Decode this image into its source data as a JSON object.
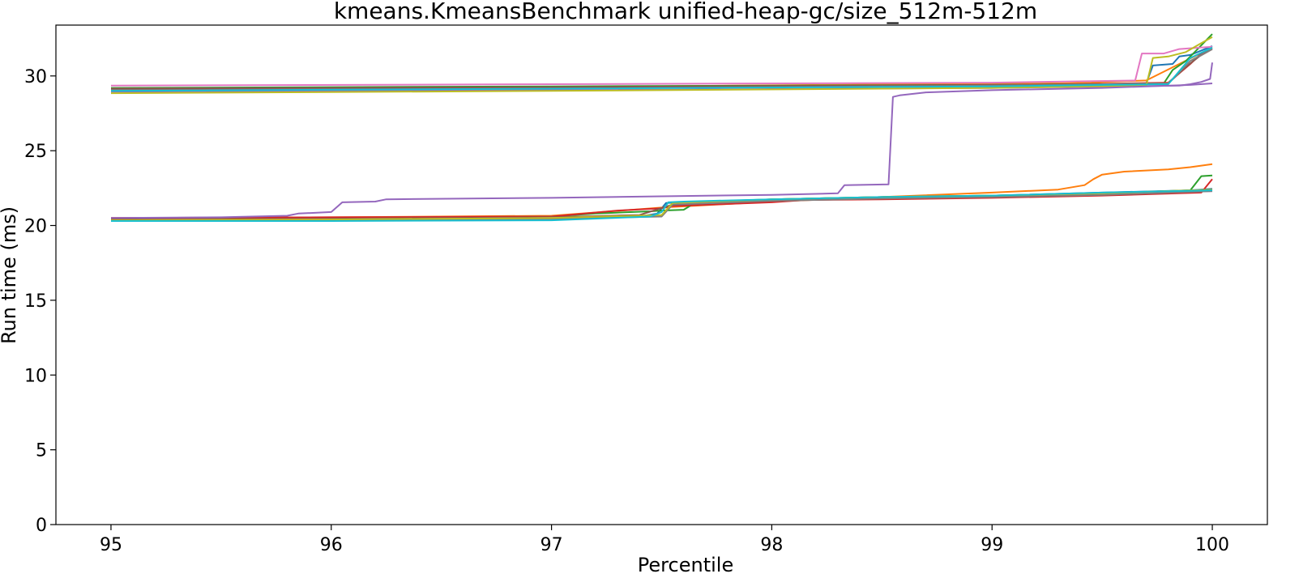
{
  "chart_data": {
    "type": "line",
    "title": "kmeans.KmeansBenchmark unified-heap-gc/size_512m-512m",
    "xlabel": "Percentile",
    "ylabel": "Run time (ms)",
    "xlim": [
      94.75,
      100.25
    ],
    "ylim": [
      0,
      33.4
    ],
    "xticks": [
      95,
      96,
      97,
      98,
      99,
      100
    ],
    "yticks": [
      0,
      5,
      10,
      15,
      20,
      25,
      30
    ],
    "grid": false,
    "legend": "none",
    "series": [
      {
        "color": "#1f77b4",
        "x": [
          95,
          97,
          99,
          99.7,
          99.73,
          99.82,
          99.85,
          99.9,
          99.95,
          100
        ],
        "y": [
          29.05,
          29.18,
          29.35,
          29.5,
          30.7,
          30.8,
          31.3,
          31.4,
          31.7,
          32.0
        ]
      },
      {
        "color": "#ff7f0e",
        "x": [
          95,
          97,
          98.6,
          99.3,
          99.45,
          99.5,
          99.6,
          99.7,
          99.85,
          100
        ],
        "y": [
          29.1,
          29.25,
          29.45,
          29.5,
          29.55,
          29.6,
          29.65,
          29.7,
          30.8,
          31.9
        ]
      },
      {
        "color": "#2ca02c",
        "x": [
          95,
          97,
          99,
          99.78,
          99.82,
          99.88,
          99.92,
          100
        ],
        "y": [
          29.2,
          29.3,
          29.4,
          29.5,
          30.4,
          31.0,
          31.6,
          32.8
        ]
      },
      {
        "color": "#d62728",
        "x": [
          95,
          97,
          99,
          99.8,
          99.9,
          99.95,
          100
        ],
        "y": [
          29.1,
          29.2,
          29.35,
          29.55,
          30.8,
          31.5,
          31.9
        ]
      },
      {
        "color": "#9467bd",
        "x": [
          95,
          97,
          99,
          99.85,
          99.9,
          99.95,
          99.99,
          100
        ],
        "y": [
          28.95,
          29.05,
          29.2,
          29.35,
          29.45,
          29.6,
          29.8,
          30.9
        ]
      },
      {
        "color": "#8c564b",
        "x": [
          95,
          97,
          99,
          99.8,
          99.88,
          99.94,
          100
        ],
        "y": [
          29.15,
          29.25,
          29.4,
          29.5,
          30.6,
          31.3,
          31.8
        ]
      },
      {
        "color": "#e377c2",
        "x": [
          95,
          97,
          99,
          99.65,
          99.68,
          99.78,
          99.85,
          99.9,
          100
        ],
        "y": [
          29.35,
          29.45,
          29.55,
          29.7,
          31.5,
          31.5,
          31.8,
          31.85,
          31.95
        ]
      },
      {
        "color": "#7f7f7f",
        "x": [
          95,
          97,
          99,
          99.8,
          99.9,
          100
        ],
        "y": [
          29.05,
          29.15,
          29.35,
          29.5,
          31.0,
          31.8
        ]
      },
      {
        "color": "#bcbd22",
        "x": [
          95,
          97,
          99,
          99.7,
          99.73,
          99.8,
          99.88,
          99.95,
          100
        ],
        "y": [
          28.85,
          29.0,
          29.2,
          29.35,
          31.2,
          31.3,
          31.6,
          32.2,
          32.6
        ]
      },
      {
        "color": "#17becf",
        "x": [
          95,
          97,
          99,
          99.8,
          99.9,
          100
        ],
        "y": [
          29.0,
          29.15,
          29.3,
          29.45,
          31.2,
          31.9
        ]
      },
      {
        "color": "#1f77b4",
        "x": [
          95,
          96,
          97,
          97.4,
          97.48,
          97.52,
          97.7,
          98,
          98.5,
          99,
          99.5,
          99.9,
          100
        ],
        "y": [
          20.35,
          20.4,
          20.45,
          20.6,
          20.8,
          21.5,
          21.6,
          21.75,
          21.9,
          22.0,
          22.2,
          22.35,
          22.45
        ]
      },
      {
        "color": "#ff7f0e",
        "x": [
          95,
          96,
          97,
          97.5,
          98,
          98.5,
          99,
          99.3,
          99.42,
          99.46,
          99.5,
          99.6,
          99.8,
          99.9,
          100
        ],
        "y": [
          20.5,
          20.55,
          20.65,
          21.2,
          21.6,
          21.9,
          22.2,
          22.4,
          22.7,
          23.1,
          23.4,
          23.6,
          23.75,
          23.9,
          24.1
        ]
      },
      {
        "color": "#2ca02c",
        "x": [
          95,
          96,
          97,
          97.2,
          97.45,
          97.5,
          97.6,
          97.65,
          98,
          98.5,
          99,
          99.5,
          99.9,
          99.95,
          100
        ],
        "y": [
          20.45,
          20.5,
          20.6,
          20.8,
          20.95,
          21.0,
          21.05,
          21.5,
          21.75,
          21.9,
          22.0,
          22.15,
          22.35,
          23.3,
          23.35
        ]
      },
      {
        "color": "#d62728",
        "x": [
          95,
          96,
          97,
          97.3,
          97.5,
          97.55,
          98,
          98.15,
          98.5,
          99,
          99.5,
          99.95,
          100
        ],
        "y": [
          20.5,
          20.55,
          20.6,
          21.0,
          21.15,
          21.3,
          21.55,
          21.7,
          21.75,
          21.85,
          22.0,
          22.2,
          23.1
        ]
      },
      {
        "color": "#9467bd",
        "x": [
          95,
          95.5,
          95.8,
          95.85,
          96,
          96.05,
          96.2,
          96.25,
          97,
          97.5,
          98,
          98.3,
          98.33,
          98.53,
          98.55,
          98.58,
          98.7,
          99,
          99.5,
          99.9,
          100
        ],
        "y": [
          20.5,
          20.55,
          20.65,
          20.8,
          20.9,
          21.55,
          21.6,
          21.75,
          21.85,
          21.95,
          22.05,
          22.15,
          22.7,
          22.75,
          28.6,
          28.7,
          28.9,
          29.05,
          29.2,
          29.4,
          29.5
        ]
      },
      {
        "color": "#8c564b",
        "x": [
          95,
          96,
          97,
          97.4,
          97.55,
          98,
          98.5,
          99,
          99.5,
          99.95,
          100
        ],
        "y": [
          20.4,
          20.45,
          20.55,
          20.7,
          21.4,
          21.7,
          21.85,
          21.95,
          22.1,
          22.3,
          22.4
        ]
      },
      {
        "color": "#e377c2",
        "x": [
          95,
          96,
          97,
          97.5,
          97.55,
          98,
          98.5,
          99,
          99.5,
          100
        ],
        "y": [
          20.35,
          20.4,
          20.5,
          20.65,
          21.45,
          21.7,
          21.85,
          21.95,
          22.1,
          22.3
        ]
      },
      {
        "color": "#7f7f7f",
        "x": [
          95,
          96,
          97,
          97.5,
          97.55,
          98,
          98.5,
          99,
          99.5,
          100
        ],
        "y": [
          20.3,
          20.35,
          20.45,
          20.6,
          21.4,
          21.65,
          21.8,
          21.9,
          22.05,
          22.3
        ]
      },
      {
        "color": "#bcbd22",
        "x": [
          95,
          96,
          97,
          97.5,
          97.55,
          98,
          98.5,
          99,
          99.5,
          100
        ],
        "y": [
          20.35,
          20.4,
          20.5,
          20.7,
          21.5,
          21.75,
          21.9,
          22.0,
          22.15,
          22.4
        ]
      },
      {
        "color": "#17becf",
        "x": [
          95,
          96,
          97,
          97.45,
          97.5,
          97.53,
          97.6,
          98,
          98.5,
          99,
          99.5,
          100
        ],
        "y": [
          20.3,
          20.3,
          20.35,
          20.6,
          20.9,
          21.55,
          21.6,
          21.75,
          21.9,
          22.0,
          22.2,
          22.35
        ]
      }
    ]
  }
}
